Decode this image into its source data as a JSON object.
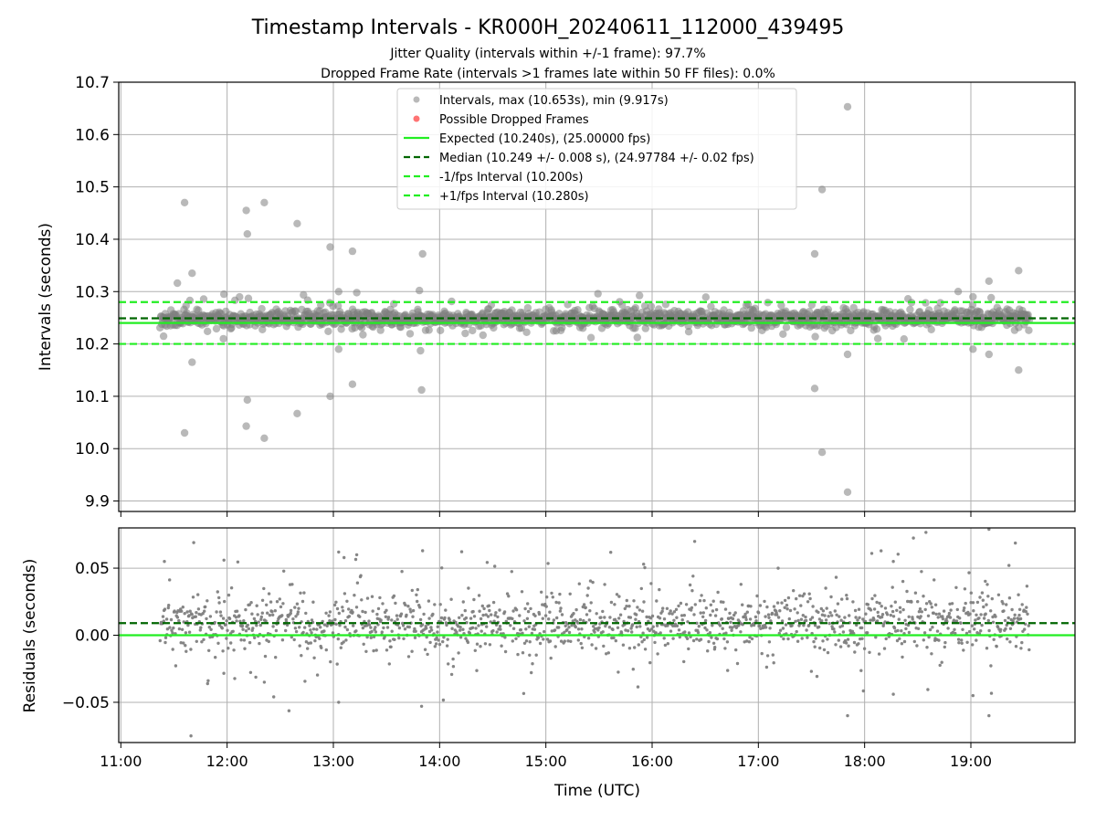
{
  "title": "Timestamp Intervals - KR000H_20240611_112000_439495",
  "subtitle_lines": [
    "Jitter Quality (intervals within +/-1 frame): 97.7%",
    "Dropped Frame Rate (intervals >1 frames late within 50 FF files): 0.0%"
  ],
  "colors": {
    "points": "#808080",
    "dropped": "#ff4444",
    "expected": "#22ee22",
    "median": "#006600",
    "interval": "#22ee22",
    "grid": "#b0b0b0"
  },
  "chart_data": [
    {
      "type": "scatter",
      "name": "intervals",
      "xlabel": "",
      "ylabel": "Intervals (seconds)",
      "xlim": [
        10.98,
        19.98
      ],
      "ylim": [
        9.88,
        10.7
      ],
      "yticks": [
        9.9,
        10.0,
        10.1,
        10.2,
        10.3,
        10.4,
        10.5,
        10.6,
        10.7
      ],
      "ytick_labels": [
        "9.9",
        "10.0",
        "10.1",
        "10.2",
        "10.3",
        "10.4",
        "10.5",
        "10.6",
        "10.7"
      ],
      "grid": true,
      "legend_position": "top-center",
      "legend": [
        {
          "label": "Intervals, max (10.653s), min (9.917s)",
          "kind": "point"
        },
        {
          "label": "Possible Dropped Frames",
          "kind": "dropped"
        },
        {
          "label": "Expected (10.240s), (25.00000 fps)",
          "kind": "expected"
        },
        {
          "label": "Median (10.249 +/- 0.008 s), (24.97784 +/- 0.02 fps)",
          "kind": "median"
        },
        {
          "label": "-1/fps Interval (10.200s)",
          "kind": "interval"
        },
        {
          "label": "+1/fps Interval (10.280s)",
          "kind": "interval"
        }
      ],
      "reference_lines": {
        "expected": 10.24,
        "median": 10.249,
        "minus_interval": 10.2,
        "plus_interval": 10.28
      },
      "x_start": 11.37,
      "x_end": 19.55,
      "point_count": 1500,
      "center": 10.249,
      "outliers": [
        {
          "x": 11.6,
          "y": 10.47
        },
        {
          "x": 11.6,
          "y": 10.03
        },
        {
          "x": 11.67,
          "y": 10.335
        },
        {
          "x": 11.67,
          "y": 10.165
        },
        {
          "x": 11.97,
          "y": 10.295
        },
        {
          "x": 12.18,
          "y": 10.455
        },
        {
          "x": 12.19,
          "y": 10.41
        },
        {
          "x": 12.19,
          "y": 10.093
        },
        {
          "x": 12.18,
          "y": 10.043
        },
        {
          "x": 12.35,
          "y": 10.47
        },
        {
          "x": 12.35,
          "y": 10.02
        },
        {
          "x": 12.66,
          "y": 10.43
        },
        {
          "x": 12.66,
          "y": 10.067
        },
        {
          "x": 12.97,
          "y": 10.385
        },
        {
          "x": 12.97,
          "y": 10.1
        },
        {
          "x": 13.05,
          "y": 10.3
        },
        {
          "x": 13.05,
          "y": 10.19
        },
        {
          "x": 13.18,
          "y": 10.377
        },
        {
          "x": 13.18,
          "y": 10.123
        },
        {
          "x": 13.22,
          "y": 10.298
        },
        {
          "x": 13.81,
          "y": 10.302
        },
        {
          "x": 13.84,
          "y": 10.372
        },
        {
          "x": 13.82,
          "y": 10.187
        },
        {
          "x": 13.83,
          "y": 10.112
        },
        {
          "x": 17.53,
          "y": 10.372
        },
        {
          "x": 17.53,
          "y": 10.115
        },
        {
          "x": 17.6,
          "y": 10.495
        },
        {
          "x": 17.6,
          "y": 9.993
        },
        {
          "x": 17.84,
          "y": 10.653
        },
        {
          "x": 17.84,
          "y": 9.917
        },
        {
          "x": 17.84,
          "y": 10.18
        },
        {
          "x": 19.02,
          "y": 10.29
        },
        {
          "x": 19.02,
          "y": 10.19
        },
        {
          "x": 19.17,
          "y": 10.32
        },
        {
          "x": 19.17,
          "y": 10.18
        },
        {
          "x": 19.45,
          "y": 10.34
        },
        {
          "x": 19.45,
          "y": 10.15
        }
      ]
    },
    {
      "type": "scatter",
      "name": "residuals",
      "xlabel": "Time (UTC)",
      "ylabel": "Residuals (seconds)",
      "xlim": [
        10.98,
        19.98
      ],
      "ylim": [
        -0.08,
        0.08
      ],
      "xticks": [
        11,
        12,
        13,
        14,
        15,
        16,
        17,
        18,
        19
      ],
      "xtick_labels": [
        "11:00",
        "12:00",
        "13:00",
        "14:00",
        "15:00",
        "16:00",
        "17:00",
        "18:00",
        "19:00"
      ],
      "yticks": [
        -0.05,
        0.0,
        0.05
      ],
      "ytick_labels": [
        "−0.05",
        "0.00",
        "0.05"
      ],
      "grid": true,
      "reference_lines": {
        "expected": 0.0,
        "median": 0.009
      },
      "x_start": 11.37,
      "x_end": 19.55,
      "point_count": 1500,
      "center": 0.009,
      "outliers": [
        {
          "x": 11.66,
          "y": -0.075
        },
        {
          "x": 11.41,
          "y": 0.055
        },
        {
          "x": 11.97,
          "y": 0.056
        },
        {
          "x": 13.05,
          "y": 0.062
        },
        {
          "x": 13.22,
          "y": 0.06
        },
        {
          "x": 13.84,
          "y": 0.063
        },
        {
          "x": 13.05,
          "y": -0.05
        },
        {
          "x": 13.83,
          "y": -0.053
        },
        {
          "x": 17.84,
          "y": -0.06
        },
        {
          "x": 19.02,
          "y": -0.045
        },
        {
          "x": 19.17,
          "y": -0.06
        },
        {
          "x": 19.17,
          "y": 0.079
        },
        {
          "x": 18.27,
          "y": 0.055
        },
        {
          "x": 15.92,
          "y": 0.053
        },
        {
          "x": 18.27,
          "y": -0.044
        },
        {
          "x": 12.35,
          "y": -0.035
        }
      ]
    }
  ]
}
